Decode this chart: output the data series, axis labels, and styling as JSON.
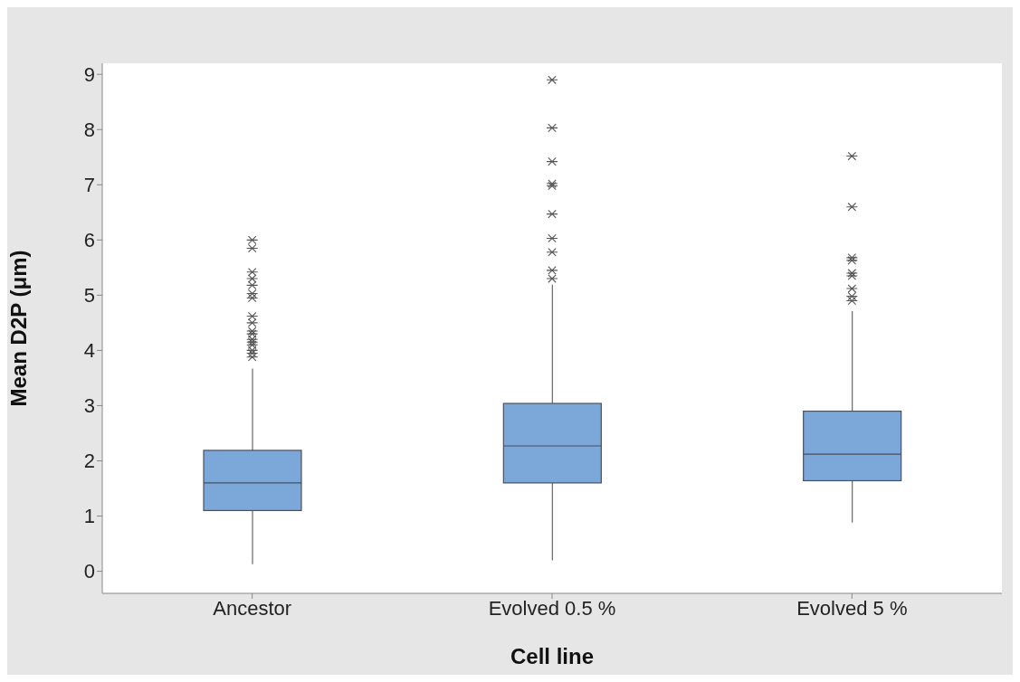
{
  "chart_data": {
    "type": "box",
    "xlabel": "Cell line",
    "ylabel": "Mean D2P (μm)",
    "categories": [
      "Ancestor",
      "Evolved 0.5 %",
      "Evolved 5 %"
    ],
    "color": "#7ba7d9",
    "marker": "star",
    "ylim": [
      -0.4,
      9.2
    ],
    "yticks": [
      0,
      1,
      2,
      3,
      4,
      5,
      6,
      7,
      8,
      9
    ],
    "boxes": [
      {
        "low": 0.13,
        "q1": 1.1,
        "median": 1.6,
        "q3": 2.19,
        "high": 3.67,
        "outliers": [
          6.0,
          5.85,
          5.42,
          5.3,
          5.18,
          5.03,
          4.95,
          4.62,
          4.5,
          4.35,
          4.3,
          4.2,
          4.15,
          4.1,
          4.0,
          3.95,
          3.88
        ]
      },
      {
        "low": 0.2,
        "q1": 1.6,
        "median": 2.27,
        "q3": 3.04,
        "high": 5.19,
        "outliers": [
          8.9,
          8.03,
          7.42,
          7.02,
          6.98,
          6.47,
          6.03,
          5.78,
          5.45,
          5.3
        ]
      },
      {
        "low": 0.88,
        "q1": 1.64,
        "median": 2.12,
        "q3": 2.9,
        "high": 4.71,
        "outliers": [
          7.52,
          6.6,
          5.68,
          5.63,
          5.4,
          5.35,
          5.12,
          4.98,
          4.9
        ]
      }
    ]
  }
}
